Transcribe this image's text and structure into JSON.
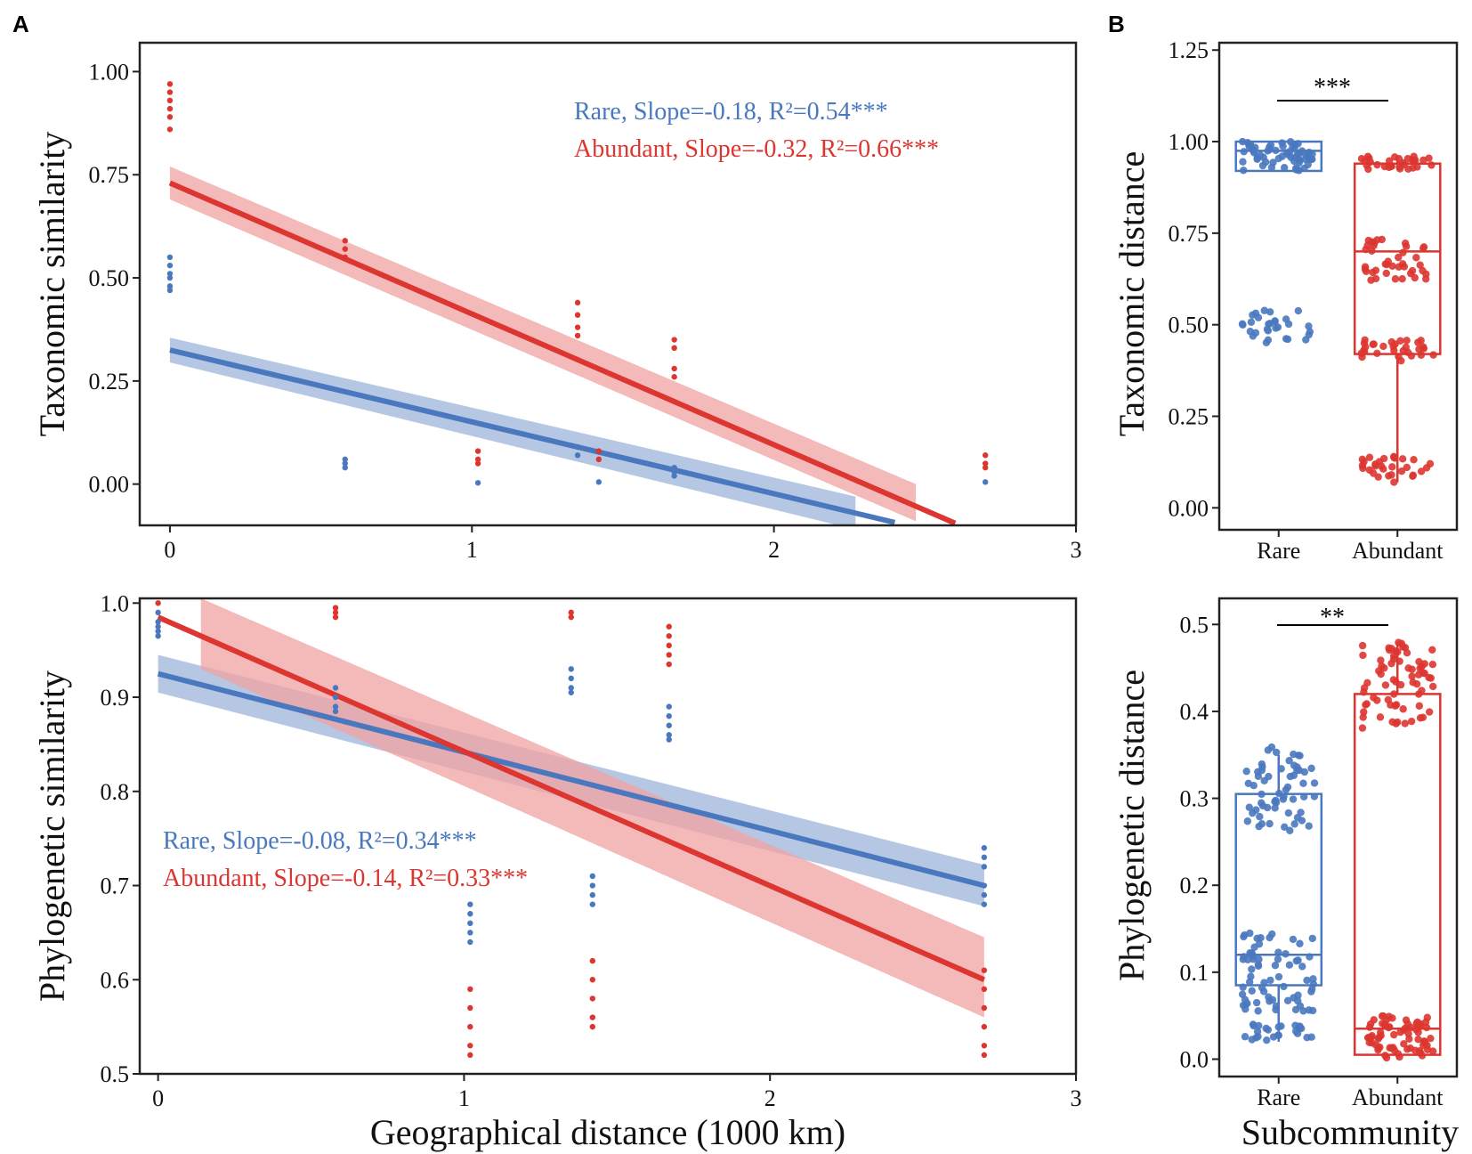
{
  "figure": {
    "x_axis_label": "Geographical distance (1000 km)",
    "box_x_label": "Subcommunity"
  },
  "colors": {
    "rare": "#4a78bf",
    "abundant": "#dd3530",
    "rare_band": "#9db4da",
    "abundant_band": "#f0a3a1",
    "axis": "#222222"
  },
  "chart_data": [
    {
      "id": "A-top",
      "panel_label": "A",
      "type": "scatter",
      "ylabel": "Taxonomic similarity",
      "xlim": [
        -0.1,
        3.0
      ],
      "ylim": [
        -0.1,
        1.07
      ],
      "xticks": [
        0,
        1,
        2,
        3
      ],
      "yticks": [
        0,
        0.25,
        0.5,
        0.75,
        1.0
      ],
      "ytick_labels": [
        "0.00",
        "0.25",
        "0.50",
        "0.75",
        "1.00"
      ],
      "series": [
        {
          "name": "Rare",
          "color_key": "rare",
          "annotation": "Rare, Slope=-0.18, R²=0.54***",
          "fit": {
            "x": [
              0,
              2.4
            ],
            "y": [
              0.325,
              -0.093
            ]
          },
          "band": {
            "x": [
              0,
              2.27
            ],
            "upper": [
              0.355,
              -0.03
            ],
            "lower": [
              0.295,
              -0.11
            ]
          },
          "points": [
            [
              0,
              0.55
            ],
            [
              0,
              0.53
            ],
            [
              0,
              0.51
            ],
            [
              0,
              0.5
            ],
            [
              0,
              0.48
            ],
            [
              0,
              0.47
            ],
            [
              0.58,
              0.06
            ],
            [
              0.58,
              0.05
            ],
            [
              0.58,
              0.04
            ],
            [
              1.02,
              0.003
            ],
            [
              1.35,
              0.09
            ],
            [
              1.35,
              0.07
            ],
            [
              1.42,
              0.005
            ],
            [
              1.67,
              0.04
            ],
            [
              1.67,
              0.03
            ],
            [
              1.67,
              0.02
            ],
            [
              2.7,
              0.005
            ]
          ]
        },
        {
          "name": "Abundant",
          "color_key": "abundant",
          "annotation": "Abundant, Slope=-0.32, R²=0.66***",
          "fit": {
            "x": [
              0,
              2.6
            ],
            "y": [
              0.73,
              -0.095
            ]
          },
          "band": {
            "x": [
              0,
              2.47
            ],
            "upper": [
              0.77,
              0.0
            ],
            "lower": [
              0.69,
              -0.09
            ]
          },
          "points": [
            [
              0,
              0.97
            ],
            [
              0,
              0.95
            ],
            [
              0,
              0.93
            ],
            [
              0,
              0.91
            ],
            [
              0,
              0.89
            ],
            [
              0,
              0.86
            ],
            [
              0.58,
              0.59
            ],
            [
              0.58,
              0.57
            ],
            [
              0.58,
              0.55
            ],
            [
              1.02,
              0.08
            ],
            [
              1.02,
              0.06
            ],
            [
              1.02,
              0.05
            ],
            [
              1.35,
              0.44
            ],
            [
              1.35,
              0.41
            ],
            [
              1.35,
              0.38
            ],
            [
              1.35,
              0.36
            ],
            [
              1.42,
              0.08
            ],
            [
              1.42,
              0.06
            ],
            [
              1.67,
              0.35
            ],
            [
              1.67,
              0.33
            ],
            [
              1.67,
              0.28
            ],
            [
              1.67,
              0.26
            ],
            [
              2.7,
              0.07
            ],
            [
              2.7,
              0.05
            ],
            [
              2.7,
              0.04
            ]
          ]
        }
      ]
    },
    {
      "id": "A-bottom",
      "type": "scatter",
      "ylabel": "Phylogenetic similarity",
      "xlim": [
        -0.06,
        3.0
      ],
      "ylim": [
        0.5,
        1.005
      ],
      "xticks": [
        0,
        1,
        2,
        3
      ],
      "yticks": [
        0.5,
        0.6,
        0.7,
        0.8,
        0.9,
        1.0
      ],
      "ytick_labels": [
        "0.5",
        "0.6",
        "0.7",
        "0.8",
        "0.9",
        "1.0"
      ],
      "series": [
        {
          "name": "Rare",
          "color_key": "rare",
          "annotation": "Rare, Slope=-0.08, R²=0.34***",
          "fit": {
            "x": [
              0,
              2.7
            ],
            "y": [
              0.925,
              0.7
            ]
          },
          "band": {
            "x": [
              0,
              2.7
            ],
            "upper": [
              0.945,
              0.722
            ],
            "lower": [
              0.905,
              0.678
            ]
          },
          "points": [
            [
              0,
              0.99
            ],
            [
              0,
              0.98
            ],
            [
              0,
              0.975
            ],
            [
              0,
              0.97
            ],
            [
              0,
              0.965
            ],
            [
              0.58,
              0.91
            ],
            [
              0.58,
              0.9
            ],
            [
              0.58,
              0.89
            ],
            [
              0.58,
              0.885
            ],
            [
              1.02,
              0.68
            ],
            [
              1.02,
              0.67
            ],
            [
              1.02,
              0.66
            ],
            [
              1.02,
              0.65
            ],
            [
              1.02,
              0.64
            ],
            [
              1.35,
              0.93
            ],
            [
              1.35,
              0.92
            ],
            [
              1.35,
              0.91
            ],
            [
              1.35,
              0.905
            ],
            [
              1.42,
              0.71
            ],
            [
              1.42,
              0.7
            ],
            [
              1.42,
              0.69
            ],
            [
              1.42,
              0.68
            ],
            [
              1.67,
              0.89
            ],
            [
              1.67,
              0.88
            ],
            [
              1.67,
              0.87
            ],
            [
              1.67,
              0.86
            ],
            [
              1.67,
              0.855
            ],
            [
              2.7,
              0.74
            ],
            [
              2.7,
              0.73
            ],
            [
              2.7,
              0.72
            ],
            [
              2.7,
              0.7
            ],
            [
              2.7,
              0.69
            ],
            [
              2.7,
              0.68
            ]
          ]
        },
        {
          "name": "Abundant",
          "color_key": "abundant",
          "annotation": "Abundant, Slope=-0.14, R²=0.33***",
          "fit": {
            "x": [
              0,
              2.7
            ],
            "y": [
              0.985,
              0.6
            ]
          },
          "band": {
            "x": [
              0.14,
              2.7
            ],
            "upper": [
              1.005,
              0.645
            ],
            "lower": [
              0.93,
              0.56
            ]
          },
          "points": [
            [
              0,
              1.0
            ],
            [
              0.58,
              0.995
            ],
            [
              0.58,
              0.99
            ],
            [
              0.58,
              0.985
            ],
            [
              1.02,
              0.59
            ],
            [
              1.02,
              0.57
            ],
            [
              1.02,
              0.55
            ],
            [
              1.02,
              0.53
            ],
            [
              1.02,
              0.52
            ],
            [
              1.35,
              0.99
            ],
            [
              1.35,
              0.985
            ],
            [
              1.42,
              0.62
            ],
            [
              1.42,
              0.6
            ],
            [
              1.42,
              0.58
            ],
            [
              1.42,
              0.56
            ],
            [
              1.42,
              0.55
            ],
            [
              1.67,
              0.975
            ],
            [
              1.67,
              0.965
            ],
            [
              1.67,
              0.955
            ],
            [
              1.67,
              0.945
            ],
            [
              1.67,
              0.935
            ],
            [
              2.7,
              0.61
            ],
            [
              2.7,
              0.59
            ],
            [
              2.7,
              0.57
            ],
            [
              2.7,
              0.55
            ],
            [
              2.7,
              0.53
            ],
            [
              2.7,
              0.52
            ]
          ]
        }
      ]
    },
    {
      "id": "B-top",
      "panel_label": "B",
      "type": "box",
      "ylabel": "Taxonomic distance",
      "categories": [
        "Rare",
        "Abundant"
      ],
      "ylim": [
        -0.06,
        1.27
      ],
      "yticks": [
        0,
        0.25,
        0.5,
        0.75,
        1.0,
        1.25
      ],
      "ytick_labels": [
        "0.00",
        "0.25",
        "0.50",
        "0.75",
        "1.00",
        "1.25"
      ],
      "significance": "***",
      "boxes": [
        {
          "name": "Rare",
          "color_key": "rare",
          "q1": 0.92,
          "median": 0.975,
          "q3": 1.0,
          "whisker_low": 0.92,
          "whisker_high": 1.0,
          "clusters": [
            [
              0.92,
              1.0,
              60
            ],
            [
              0.45,
              0.54,
              30
            ]
          ]
        },
        {
          "name": "Abundant",
          "color_key": "abundant",
          "q1": 0.42,
          "median": 0.7,
          "q3": 0.94,
          "whisker_low": 0.07,
          "whisker_high": 0.96,
          "clusters": [
            [
              0.92,
              0.96,
              30
            ],
            [
              0.6,
              0.74,
              40
            ],
            [
              0.4,
              0.46,
              30
            ],
            [
              0.07,
              0.14,
              30
            ]
          ]
        }
      ]
    },
    {
      "id": "B-bottom",
      "type": "box",
      "ylabel": "Phylogenetic distance",
      "categories": [
        "Rare",
        "Abundant"
      ],
      "ylim": [
        -0.02,
        0.53
      ],
      "yticks": [
        0,
        0.1,
        0.2,
        0.3,
        0.4,
        0.5
      ],
      "ytick_labels": [
        "0.0",
        "0.1",
        "0.2",
        "0.3",
        "0.4",
        "0.5"
      ],
      "significance": "**",
      "boxes": [
        {
          "name": "Rare",
          "color_key": "rare",
          "q1": 0.085,
          "median": 0.12,
          "q3": 0.305,
          "whisker_low": 0.02,
          "whisker_high": 0.35,
          "clusters": [
            [
              0.26,
              0.36,
              60
            ],
            [
              0.05,
              0.15,
              70
            ],
            [
              0.02,
              0.04,
              25
            ]
          ]
        },
        {
          "name": "Abundant",
          "color_key": "abundant",
          "q1": 0.005,
          "median": 0.035,
          "q3": 0.42,
          "whisker_low": 0.0,
          "whisker_high": 0.48,
          "clusters": [
            [
              0.38,
              0.48,
              70
            ],
            [
              0.0,
              0.05,
              70
            ]
          ]
        }
      ]
    }
  ]
}
